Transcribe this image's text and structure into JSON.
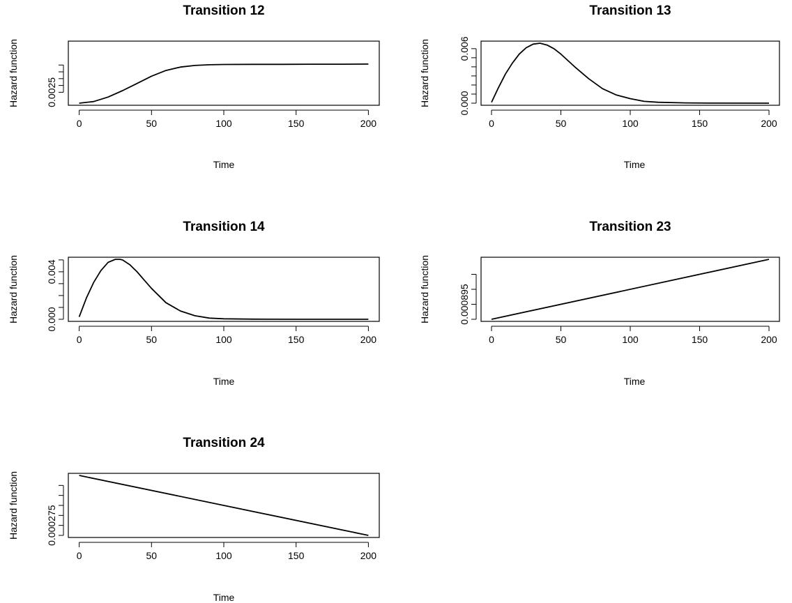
{
  "chart_data": [
    {
      "type": "line",
      "title": "Transition 12",
      "xlabel": "Time",
      "ylabel": "Hazard function",
      "xlim": [
        0,
        200
      ],
      "ylim": [
        0.0017,
        0.0061
      ],
      "x_ticks": [
        "0",
        "50",
        "100",
        "150",
        "200"
      ],
      "y_ticks_labeled": [
        "0.0025"
      ],
      "y_ticks": [
        0.0025,
        0.003,
        0.0035,
        0.004,
        0.0045
      ],
      "grid": false,
      "series": [
        {
          "x": [
            0,
            10,
            20,
            30,
            40,
            50,
            60,
            70,
            80,
            90,
            100,
            120,
            140,
            160,
            180,
            200
          ],
          "y": [
            0.0017,
            0.00182,
            0.00215,
            0.00262,
            0.00315,
            0.00368,
            0.0041,
            0.00435,
            0.00447,
            0.00452,
            0.00454,
            0.00455,
            0.00455,
            0.00456,
            0.00456,
            0.00457
          ]
        }
      ]
    },
    {
      "type": "line",
      "title": "Transition 13",
      "xlabel": "Time",
      "ylabel": "Hazard function",
      "xlim": [
        0,
        200
      ],
      "ylim": [
        0,
        0.0066
      ],
      "x_ticks": [
        "0",
        "50",
        "100",
        "150",
        "200"
      ],
      "y_ticks_labeled": [
        "0.000",
        "0.006"
      ],
      "y_ticks": [
        0.0,
        0.001,
        0.002,
        0.003,
        0.004,
        0.005,
        0.006
      ],
      "grid": false,
      "series": [
        {
          "x": [
            0,
            5,
            10,
            15,
            20,
            25,
            30,
            35,
            40,
            45,
            50,
            60,
            70,
            80,
            90,
            100,
            110,
            120,
            140,
            160,
            200
          ],
          "y": [
            0.0001,
            0.0017,
            0.0032,
            0.0044,
            0.0054,
            0.0061,
            0.0065,
            0.0066,
            0.0064,
            0.006,
            0.0054,
            0.004,
            0.0027,
            0.0016,
            0.0009,
            0.0005,
            0.0002,
            0.0001,
            3e-05,
            1e-05,
            0.0
          ]
        }
      ]
    },
    {
      "type": "line",
      "title": "Transition 14",
      "xlabel": "Time",
      "ylabel": "Hazard function",
      "xlim": [
        0,
        200
      ],
      "ylim": [
        0,
        0.00505
      ],
      "x_ticks": [
        "0",
        "50",
        "100",
        "150",
        "200"
      ],
      "y_ticks_labeled": [
        "0.000",
        "0.004"
      ],
      "y_ticks": [
        0.0,
        0.001,
        0.002,
        0.003,
        0.004,
        0.005
      ],
      "grid": false,
      "series": [
        {
          "x": [
            0,
            5,
            10,
            15,
            20,
            25,
            28,
            30,
            35,
            40,
            45,
            50,
            60,
            70,
            80,
            90,
            100,
            120,
            150,
            200
          ],
          "y": [
            0.0002,
            0.0018,
            0.0031,
            0.0041,
            0.0048,
            0.00505,
            0.00505,
            0.005,
            0.0046,
            0.004,
            0.0033,
            0.0026,
            0.0014,
            0.0007,
            0.0003,
            0.0001,
            4e-05,
            1e-05,
            0.0,
            0.0
          ]
        }
      ]
    },
    {
      "type": "line",
      "title": "Transition 23",
      "xlabel": "Time",
      "ylabel": "Hazard function",
      "xlim": [
        0,
        200
      ],
      "ylim": [
        0.000894,
        0.000898
      ],
      "x_ticks": [
        "0",
        "50",
        "100",
        "150",
        "200"
      ],
      "y_ticks_labeled": [
        "0.000895"
      ],
      "y_ticks": [
        0.000894,
        0.000895,
        0.000896,
        0.000897
      ],
      "grid": false,
      "series": [
        {
          "x": [
            0,
            200
          ],
          "y": [
            0.000894,
            0.000898
          ]
        }
      ]
    },
    {
      "type": "line",
      "title": "Transition 24",
      "xlabel": "Time",
      "ylabel": "Hazard function",
      "xlim": [
        0,
        200
      ],
      "ylim": [
        0.00027,
        0.0003
      ],
      "x_ticks": [
        "0",
        "50",
        "100",
        "150",
        "200"
      ],
      "y_ticks_labeled": [
        "0.000275"
      ],
      "y_ticks": [
        0.00027,
        0.000275,
        0.00028,
        0.000285,
        0.00029,
        0.000295
      ],
      "grid": false,
      "series": [
        {
          "x": [
            0,
            200
          ],
          "y": [
            0.0003,
            0.00027
          ]
        }
      ]
    }
  ]
}
